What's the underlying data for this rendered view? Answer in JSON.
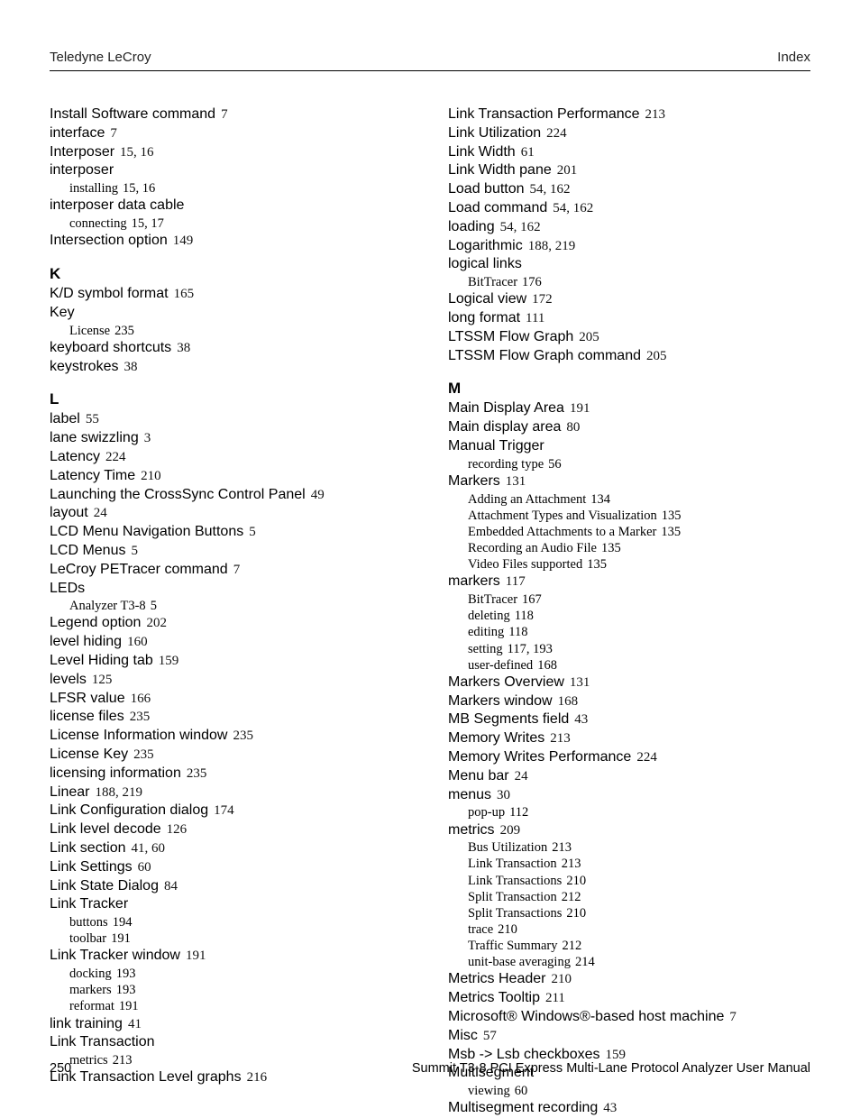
{
  "header": {
    "left": "Teledyne LeCroy",
    "right": "Index"
  },
  "footer": {
    "page": "250",
    "title": "Summit T3-8 PCI Express Multi-Lane Protocol Analyzer User Manual"
  },
  "left_col": [
    {
      "t": "entry",
      "term": "Install Software command",
      "pages": "7"
    },
    {
      "t": "entry",
      "term": "interface",
      "pages": "7"
    },
    {
      "t": "entry",
      "term": "Interposer",
      "pages": "15, 16"
    },
    {
      "t": "entry",
      "term": "interposer",
      "pages": ""
    },
    {
      "t": "sub",
      "term": "installing",
      "pages": "15, 16"
    },
    {
      "t": "entry",
      "term": "interposer data cable",
      "pages": ""
    },
    {
      "t": "sub",
      "term": "connecting",
      "pages": "15, 17"
    },
    {
      "t": "entry",
      "term": "Intersection option",
      "pages": "149"
    },
    {
      "t": "letter",
      "term": "K"
    },
    {
      "t": "entry",
      "term": "K/D symbol format",
      "pages": "165"
    },
    {
      "t": "entry",
      "term": "Key",
      "pages": ""
    },
    {
      "t": "sub",
      "term": "License",
      "pages": "235"
    },
    {
      "t": "entry",
      "term": "keyboard shortcuts",
      "pages": "38"
    },
    {
      "t": "entry",
      "term": "keystrokes",
      "pages": "38"
    },
    {
      "t": "letter",
      "term": "L"
    },
    {
      "t": "entry",
      "term": "label",
      "pages": "55"
    },
    {
      "t": "entry",
      "term": "lane swizzling",
      "pages": "3"
    },
    {
      "t": "entry",
      "term": "Latency",
      "pages": "224"
    },
    {
      "t": "entry",
      "term": "Latency Time",
      "pages": "210"
    },
    {
      "t": "entry",
      "term": "Launching the CrossSync Control Panel",
      "pages": "49"
    },
    {
      "t": "entry",
      "term": "layout",
      "pages": "24"
    },
    {
      "t": "entry",
      "term": "LCD Menu Navigation Buttons",
      "pages": "5"
    },
    {
      "t": "entry",
      "term": "LCD Menus",
      "pages": "5"
    },
    {
      "t": "entry",
      "term": "LeCroy PETracer command",
      "pages": "7"
    },
    {
      "t": "entry",
      "term": "LEDs",
      "pages": ""
    },
    {
      "t": "sub",
      "term": "Analyzer T3-8",
      "pages": "5"
    },
    {
      "t": "entry",
      "term": "Legend option",
      "pages": "202"
    },
    {
      "t": "entry",
      "term": "level hiding",
      "pages": "160"
    },
    {
      "t": "entry",
      "term": "Level Hiding tab",
      "pages": "159"
    },
    {
      "t": "entry",
      "term": "levels",
      "pages": "125"
    },
    {
      "t": "entry",
      "term": "LFSR value",
      "pages": "166"
    },
    {
      "t": "entry",
      "term": "license files",
      "pages": "235"
    },
    {
      "t": "entry",
      "term": "License Information window",
      "pages": "235"
    },
    {
      "t": "entry",
      "term": "License Key",
      "pages": "235"
    },
    {
      "t": "entry",
      "term": "licensing information",
      "pages": "235"
    },
    {
      "t": "entry",
      "term": "Linear",
      "pages": "188, 219"
    },
    {
      "t": "entry",
      "term": "Link Configuration dialog",
      "pages": "174"
    },
    {
      "t": "entry",
      "term": "Link level decode",
      "pages": "126"
    },
    {
      "t": "entry",
      "term": "Link section",
      "pages": "41, 60"
    },
    {
      "t": "entry",
      "term": "Link Settings",
      "pages": "60"
    },
    {
      "t": "entry",
      "term": "Link State Dialog",
      "pages": "84"
    },
    {
      "t": "entry",
      "term": "Link Tracker",
      "pages": ""
    },
    {
      "t": "sub",
      "term": "buttons",
      "pages": "194"
    },
    {
      "t": "sub",
      "term": "toolbar",
      "pages": "191"
    },
    {
      "t": "entry",
      "term": "Link Tracker window",
      "pages": "191"
    },
    {
      "t": "sub",
      "term": "docking",
      "pages": "193"
    },
    {
      "t": "sub",
      "term": "markers",
      "pages": "193"
    },
    {
      "t": "sub",
      "term": "reformat",
      "pages": "191"
    },
    {
      "t": "entry",
      "term": "link training",
      "pages": "41"
    },
    {
      "t": "entry",
      "term": "Link Transaction",
      "pages": ""
    },
    {
      "t": "sub",
      "term": "metrics",
      "pages": "213"
    },
    {
      "t": "entry",
      "term": "Link Transaction Level graphs",
      "pages": "216"
    }
  ],
  "right_col": [
    {
      "t": "entry",
      "term": "Link Transaction Performance",
      "pages": "213"
    },
    {
      "t": "entry",
      "term": "Link Utilization",
      "pages": "224"
    },
    {
      "t": "entry",
      "term": "Link Width",
      "pages": "61"
    },
    {
      "t": "entry",
      "term": "Link Width pane",
      "pages": "201"
    },
    {
      "t": "entry",
      "term": "Load button",
      "pages": "54, 162"
    },
    {
      "t": "entry",
      "term": "Load command",
      "pages": "54, 162"
    },
    {
      "t": "entry",
      "term": "loading",
      "pages": "54, 162"
    },
    {
      "t": "entry",
      "term": "Logarithmic",
      "pages": "188, 219"
    },
    {
      "t": "entry",
      "term": "logical links",
      "pages": ""
    },
    {
      "t": "sub",
      "term": "BitTracer",
      "pages": "176"
    },
    {
      "t": "entry",
      "term": "Logical view",
      "pages": "172"
    },
    {
      "t": "entry",
      "term": "long format",
      "pages": "111"
    },
    {
      "t": "entry",
      "term": "LTSSM Flow Graph",
      "pages": "205"
    },
    {
      "t": "entry",
      "term": "LTSSM Flow Graph command",
      "pages": "205"
    },
    {
      "t": "letter",
      "term": "M"
    },
    {
      "t": "entry",
      "term": "Main Display Area",
      "pages": "191"
    },
    {
      "t": "entry",
      "term": "Main display area",
      "pages": "80"
    },
    {
      "t": "entry",
      "term": "Manual Trigger",
      "pages": ""
    },
    {
      "t": "sub",
      "term": "recording type",
      "pages": "56"
    },
    {
      "t": "entry",
      "term": "Markers",
      "pages": "131"
    },
    {
      "t": "sub",
      "term": "Adding an Attachment",
      "pages": "134"
    },
    {
      "t": "sub",
      "term": "Attachment Types and Visualization",
      "pages": "135"
    },
    {
      "t": "sub",
      "term": "Embedded Attachments to a Marker",
      "pages": "135"
    },
    {
      "t": "sub",
      "term": "Recording an Audio File",
      "pages": "135"
    },
    {
      "t": "sub",
      "term": "Video Files supported",
      "pages": "135"
    },
    {
      "t": "entry",
      "term": "markers",
      "pages": "117"
    },
    {
      "t": "sub",
      "term": "BitTracer",
      "pages": "167"
    },
    {
      "t": "sub",
      "term": "deleting",
      "pages": "118"
    },
    {
      "t": "sub",
      "term": "editing",
      "pages": "118"
    },
    {
      "t": "sub",
      "term": "setting",
      "pages": "117, 193"
    },
    {
      "t": "sub",
      "term": "user-defined",
      "pages": "168"
    },
    {
      "t": "entry",
      "term": "Markers Overview",
      "pages": "131"
    },
    {
      "t": "entry",
      "term": "Markers window",
      "pages": "168"
    },
    {
      "t": "entry",
      "term": "MB Segments field",
      "pages": "43"
    },
    {
      "t": "entry",
      "term": "Memory Writes",
      "pages": "213"
    },
    {
      "t": "entry",
      "term": "Memory Writes Performance",
      "pages": "224"
    },
    {
      "t": "entry",
      "term": "Menu bar",
      "pages": "24"
    },
    {
      "t": "entry",
      "term": "menus",
      "pages": "30"
    },
    {
      "t": "sub",
      "term": "pop-up",
      "pages": "112"
    },
    {
      "t": "entry",
      "term": "metrics",
      "pages": "209"
    },
    {
      "t": "sub",
      "term": "Bus Utilization",
      "pages": "213"
    },
    {
      "t": "sub",
      "term": "Link Transaction",
      "pages": "213"
    },
    {
      "t": "sub",
      "term": "Link Transactions",
      "pages": "210"
    },
    {
      "t": "sub",
      "term": "Split Transaction",
      "pages": "212"
    },
    {
      "t": "sub",
      "term": "Split Transactions",
      "pages": "210"
    },
    {
      "t": "sub",
      "term": "trace",
      "pages": "210"
    },
    {
      "t": "sub",
      "term": "Traffic Summary",
      "pages": "212"
    },
    {
      "t": "sub",
      "term": "unit-base averaging",
      "pages": "214"
    },
    {
      "t": "entry",
      "term": "Metrics Header",
      "pages": "210"
    },
    {
      "t": "entry",
      "term": "Metrics Tooltip",
      "pages": "211"
    },
    {
      "t": "entry",
      "term": "Microsoft® Windows®-based host machine",
      "pages": "7"
    },
    {
      "t": "entry",
      "term": "Misc",
      "pages": "57"
    },
    {
      "t": "entry",
      "term": "Msb -> Lsb checkboxes",
      "pages": "159"
    },
    {
      "t": "entry",
      "term": "Multisegment",
      "pages": ""
    },
    {
      "t": "sub",
      "term": "viewing",
      "pages": "60"
    },
    {
      "t": "entry",
      "term": "Multisegment recording",
      "pages": "43"
    }
  ]
}
